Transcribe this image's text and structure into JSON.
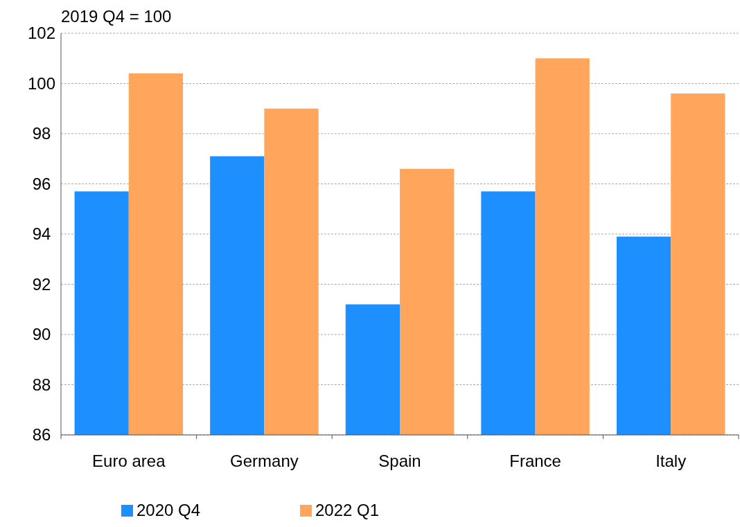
{
  "chart_data": {
    "type": "bar",
    "title": "2019 Q4 = 100",
    "categories": [
      "Euro area",
      "Germany",
      "Spain",
      "France",
      "Italy"
    ],
    "series": [
      {
        "name": "2020 Q4",
        "color": "#1e8fff",
        "values": [
          95.7,
          97.1,
          91.2,
          95.7,
          93.9
        ]
      },
      {
        "name": "2022 Q1",
        "color": "#ffa55c",
        "values": [
          100.4,
          99.0,
          96.6,
          101.0,
          99.6
        ]
      }
    ],
    "ylim": [
      86,
      102
    ],
    "yticks": [
      86,
      88,
      90,
      92,
      94,
      96,
      98,
      100,
      102
    ],
    "grid": "y",
    "legend": "bottom"
  }
}
